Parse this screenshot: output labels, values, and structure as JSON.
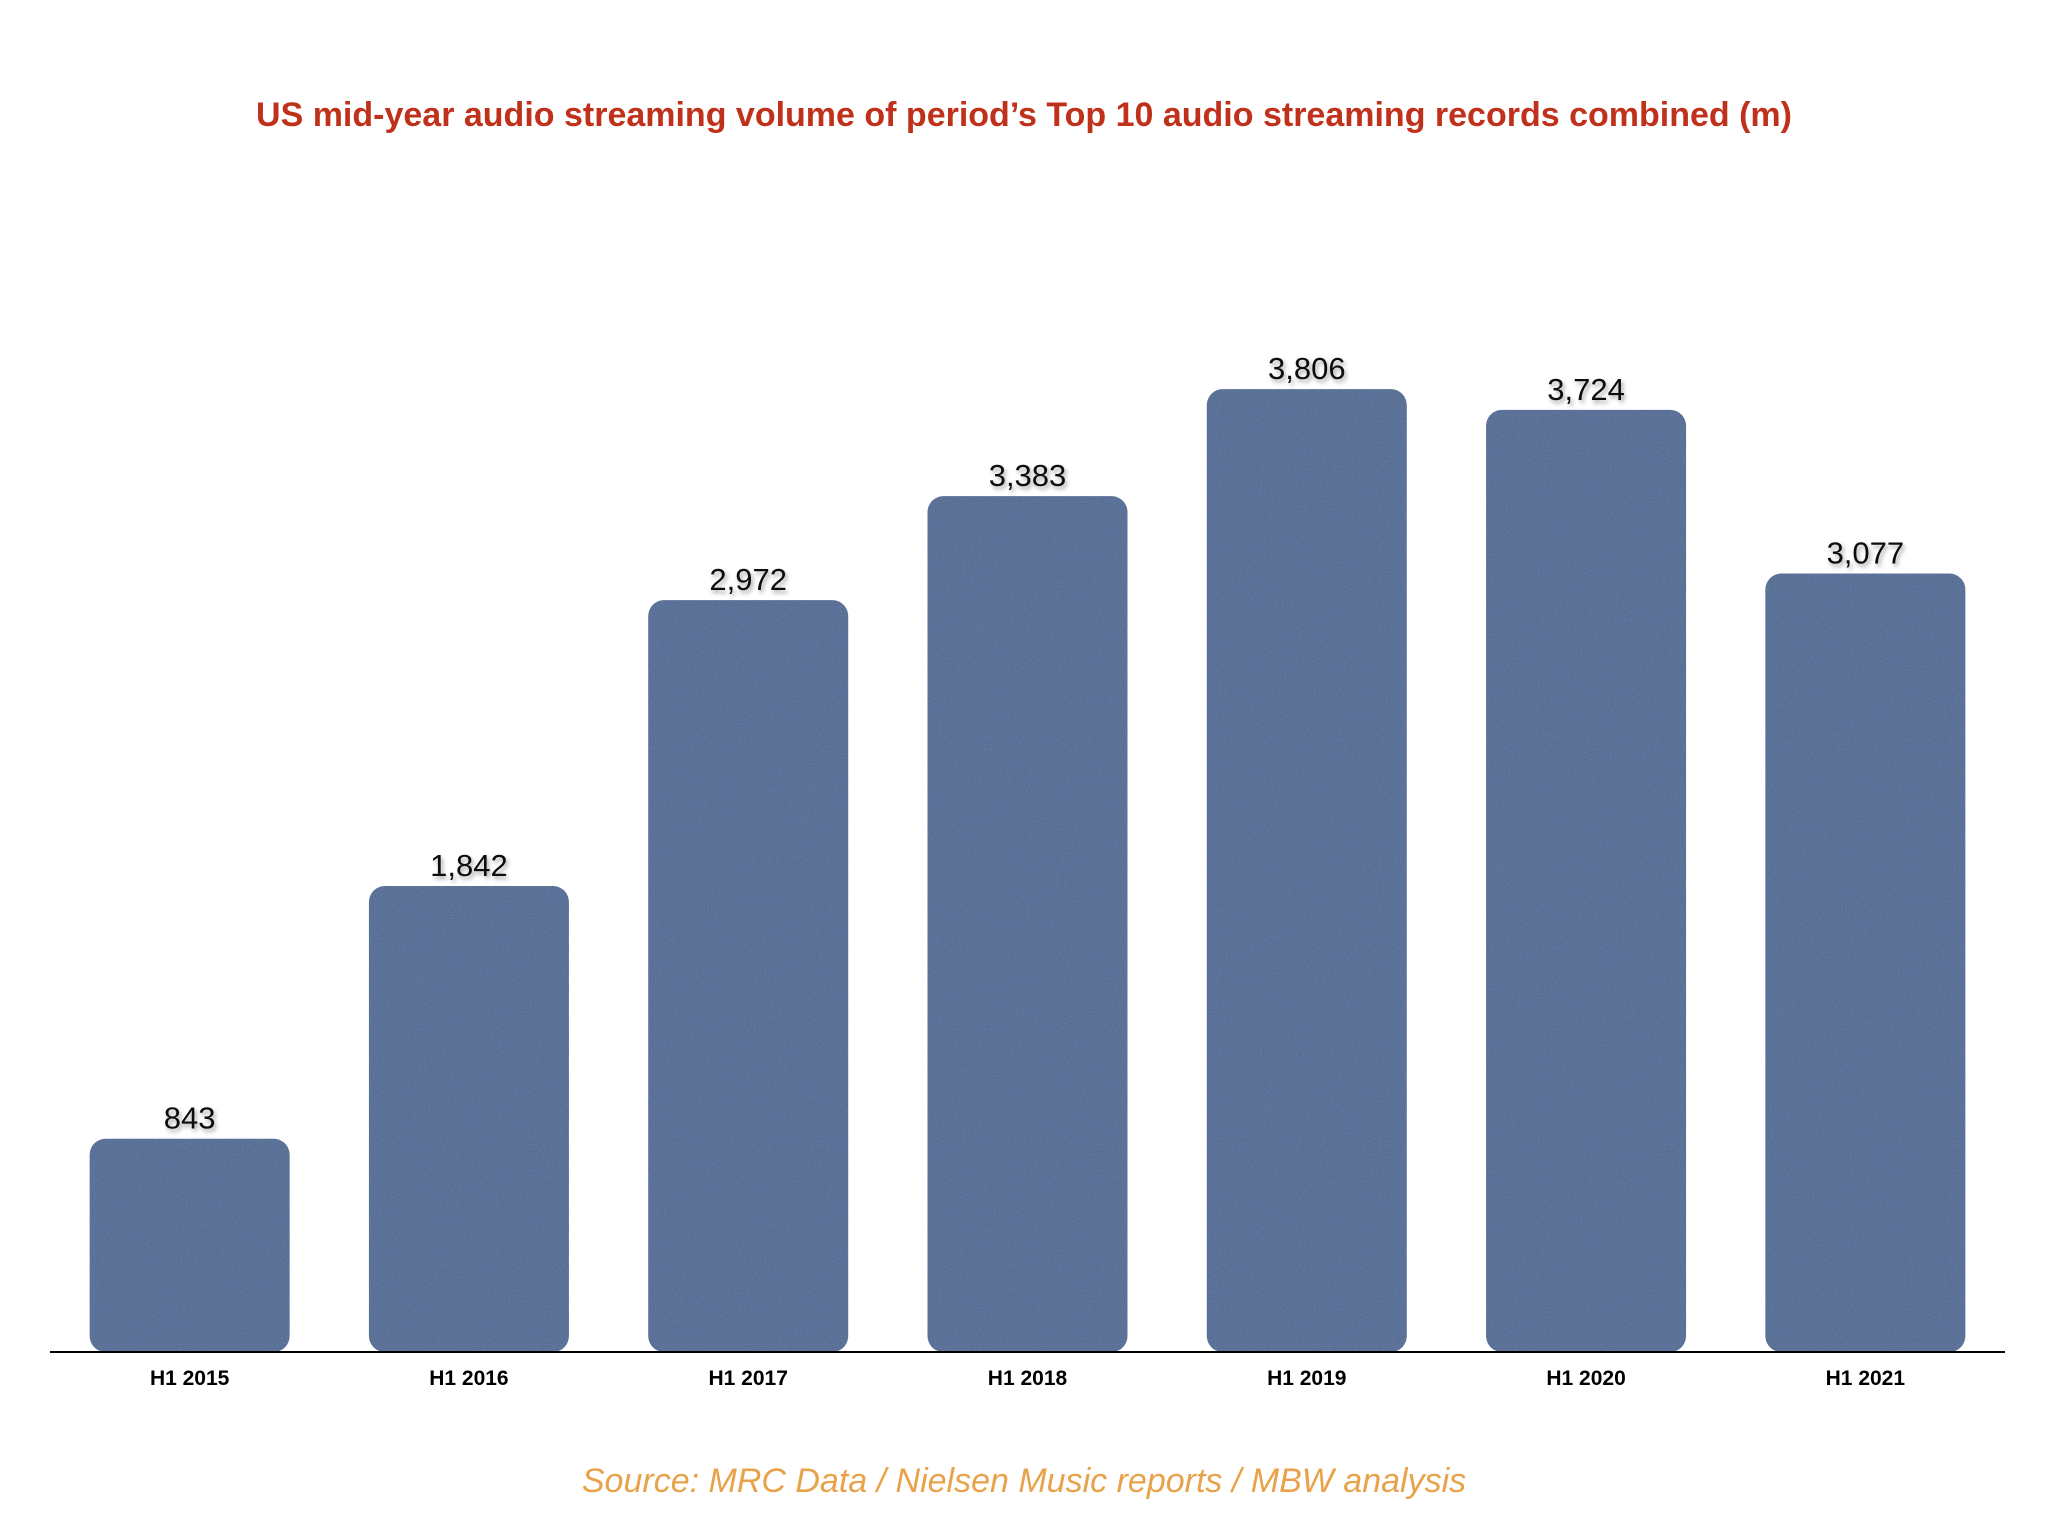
{
  "chart_data": {
    "type": "bar",
    "title": "US mid-year audio streaming volume of period’s Top 10 audio streaming records combined (m)",
    "categories": [
      "H1 2015",
      "H1 2016",
      "H1 2017",
      "H1 2018",
      "H1 2019",
      "H1 2020",
      "H1 2021"
    ],
    "values": [
      843,
      1842,
      2972,
      3383,
      3806,
      3724,
      3077
    ],
    "value_labels": [
      "843",
      "1,842",
      "2,972",
      "3,383",
      "3,806",
      "3,724",
      "3,077"
    ],
    "xlabel": "",
    "ylabel": "",
    "ylim": [
      0,
      4000
    ],
    "grid": false,
    "legend": "none",
    "source": "Source: MRC Data / Nielsen Music reports / MBW analysis",
    "colors": {
      "bar": "#4c6894",
      "bar_texture": "#6a86a8",
      "title": "#c0311c",
      "source": "#e8a24a",
      "axis": "#000000"
    }
  }
}
